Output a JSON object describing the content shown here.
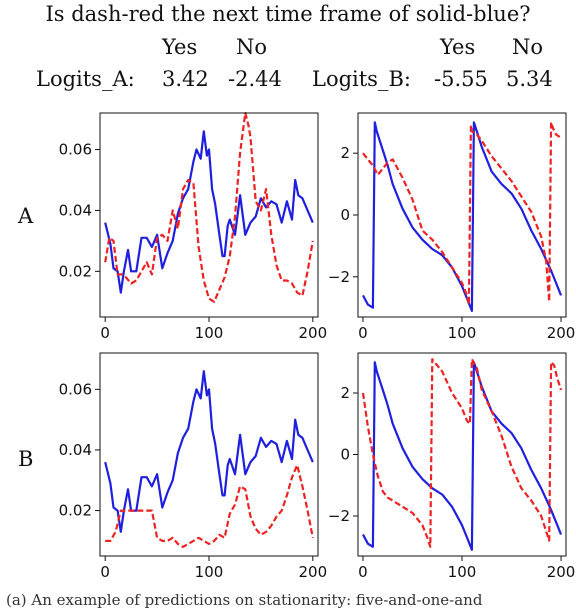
{
  "header": {
    "question": "Is dash-red the next time frame of solid-blue?",
    "yes_label": "Yes",
    "no_label": "No",
    "logits_a_label": "Logits_A:",
    "logits_a_yes": "3.42",
    "logits_a_no": "-2.44",
    "logits_b_label": "Logits_B:",
    "logits_b_yes": "-5.55",
    "logits_b_no": "5.34"
  },
  "row_labels": [
    "A",
    "B"
  ],
  "caption": "(a) An example of predictions on stationarity: five-and-one-and",
  "colors": {
    "solid": "#1f1fe0",
    "dash": "#ee2222"
  },
  "chart_data": [
    {
      "type": "line",
      "panel": "A-left",
      "xlim": [
        -5,
        205
      ],
      "ylim": [
        0.005,
        0.072
      ],
      "xticks": [
        "0",
        "100",
        "200"
      ],
      "yticks": [
        "0.02",
        "0.04",
        "0.06"
      ],
      "ytick_values": [
        0.02,
        0.04,
        0.06
      ],
      "series": [
        {
          "style": "solid",
          "x": [
            0,
            5,
            8,
            12,
            15,
            18,
            22,
            25,
            30,
            35,
            40,
            45,
            50,
            55,
            60,
            65,
            70,
            75,
            80,
            85,
            88,
            92,
            95,
            98,
            100,
            103,
            106,
            110,
            113,
            115,
            118,
            120,
            125,
            130,
            135,
            140,
            145,
            150,
            155,
            160,
            165,
            170,
            175,
            180,
            183,
            186,
            190,
            195,
            200
          ],
          "y": [
            0.036,
            0.029,
            0.021,
            0.02,
            0.013,
            0.02,
            0.027,
            0.02,
            0.02,
            0.031,
            0.031,
            0.028,
            0.032,
            0.021,
            0.026,
            0.03,
            0.039,
            0.044,
            0.047,
            0.056,
            0.06,
            0.057,
            0.066,
            0.058,
            0.06,
            0.047,
            0.042,
            0.032,
            0.025,
            0.025,
            0.035,
            0.037,
            0.032,
            0.045,
            0.032,
            0.036,
            0.038,
            0.044,
            0.041,
            0.043,
            0.042,
            0.036,
            0.043,
            0.037,
            0.05,
            0.045,
            0.044,
            0.04,
            0.036
          ]
        },
        {
          "style": "dash",
          "x": [
            0,
            4,
            8,
            12,
            16,
            20,
            25,
            30,
            35,
            40,
            45,
            50,
            55,
            60,
            65,
            70,
            75,
            80,
            85,
            90,
            95,
            100,
            105,
            110,
            115,
            120,
            125,
            130,
            135,
            138,
            140,
            145,
            150,
            155,
            160,
            165,
            170,
            175,
            180,
            185,
            190,
            195,
            200
          ],
          "y": [
            0.023,
            0.031,
            0.03,
            0.019,
            0.019,
            0.018,
            0.016,
            0.017,
            0.02,
            0.023,
            0.019,
            0.031,
            0.032,
            0.03,
            0.04,
            0.034,
            0.047,
            0.05,
            0.049,
            0.028,
            0.017,
            0.011,
            0.01,
            0.014,
            0.018,
            0.025,
            0.038,
            0.059,
            0.072,
            0.068,
            0.064,
            0.043,
            0.04,
            0.047,
            0.032,
            0.022,
            0.017,
            0.017,
            0.016,
            0.013,
            0.012,
            0.02,
            0.03
          ]
        }
      ]
    },
    {
      "type": "line",
      "panel": "A-right",
      "xlim": [
        -5,
        205
      ],
      "ylim": [
        -3.3,
        3.3
      ],
      "xticks": [
        "0",
        "100",
        "200"
      ],
      "yticks": [
        "2",
        "0",
        "−2"
      ],
      "ytick_values": [
        2,
        0,
        -2
      ],
      "series": [
        {
          "style": "solid",
          "x": [
            0,
            5,
            10,
            12,
            14,
            20,
            25,
            30,
            40,
            50,
            60,
            70,
            80,
            90,
            100,
            105,
            110,
            112,
            114,
            120,
            130,
            140,
            150,
            160,
            170,
            180,
            190,
            195,
            200
          ],
          "y": [
            -2.6,
            -2.9,
            -3.0,
            3.0,
            2.7,
            2.1,
            1.6,
            1.0,
            0.2,
            -0.4,
            -0.8,
            -1.1,
            -1.3,
            -1.7,
            -2.3,
            -2.7,
            -3.1,
            3.0,
            2.8,
            2.2,
            1.4,
            1.0,
            0.7,
            0.2,
            -0.5,
            -1.1,
            -1.8,
            -2.2,
            -2.6
          ]
        },
        {
          "style": "dash",
          "x": [
            0,
            5,
            10,
            15,
            20,
            25,
            30,
            40,
            50,
            60,
            70,
            80,
            90,
            100,
            105,
            107,
            109,
            110,
            115,
            120,
            130,
            140,
            150,
            160,
            170,
            180,
            185,
            188,
            190,
            192,
            195,
            200
          ],
          "y": [
            2.0,
            1.8,
            1.6,
            1.3,
            1.5,
            1.7,
            1.8,
            1.2,
            0.5,
            -0.5,
            -0.8,
            -1.2,
            -1.7,
            -2.2,
            -2.6,
            -2.9,
            2.9,
            2.7,
            2.6,
            2.4,
            1.9,
            1.5,
            1.1,
            0.6,
            0.1,
            -0.7,
            -1.5,
            -2.8,
            3.0,
            2.8,
            2.6,
            2.5
          ]
        }
      ]
    },
    {
      "type": "line",
      "panel": "B-left",
      "xlim": [
        -5,
        205
      ],
      "ylim": [
        0.005,
        0.072
      ],
      "xticks": [
        "0",
        "100",
        "200"
      ],
      "yticks": [
        "0.02",
        "0.04",
        "0.06"
      ],
      "ytick_values": [
        0.02,
        0.04,
        0.06
      ],
      "series": [
        {
          "style": "solid",
          "x": [
            0,
            5,
            8,
            12,
            15,
            18,
            22,
            25,
            30,
            35,
            40,
            45,
            50,
            55,
            60,
            65,
            70,
            75,
            80,
            85,
            88,
            92,
            95,
            98,
            100,
            103,
            106,
            110,
            113,
            115,
            118,
            120,
            125,
            130,
            135,
            140,
            145,
            150,
            155,
            160,
            165,
            170,
            175,
            180,
            183,
            186,
            190,
            195,
            200
          ],
          "y": [
            0.036,
            0.029,
            0.021,
            0.02,
            0.013,
            0.02,
            0.027,
            0.02,
            0.02,
            0.031,
            0.031,
            0.028,
            0.032,
            0.021,
            0.026,
            0.03,
            0.039,
            0.044,
            0.047,
            0.056,
            0.06,
            0.057,
            0.066,
            0.058,
            0.06,
            0.047,
            0.042,
            0.032,
            0.025,
            0.025,
            0.035,
            0.037,
            0.032,
            0.045,
            0.032,
            0.036,
            0.038,
            0.044,
            0.041,
            0.043,
            0.042,
            0.036,
            0.043,
            0.037,
            0.05,
            0.045,
            0.044,
            0.04,
            0.036
          ]
        },
        {
          "style": "dash",
          "x": [
            0,
            5,
            10,
            15,
            20,
            25,
            30,
            35,
            40,
            45,
            50,
            55,
            60,
            65,
            70,
            75,
            80,
            85,
            90,
            95,
            100,
            105,
            110,
            115,
            120,
            125,
            130,
            135,
            140,
            145,
            150,
            155,
            160,
            165,
            170,
            175,
            180,
            185,
            190,
            195,
            200
          ],
          "y": [
            0.01,
            0.01,
            0.013,
            0.02,
            0.02,
            0.02,
            0.02,
            0.02,
            0.02,
            0.02,
            0.011,
            0.01,
            0.01,
            0.011,
            0.009,
            0.008,
            0.009,
            0.01,
            0.011,
            0.01,
            0.009,
            0.01,
            0.012,
            0.011,
            0.019,
            0.022,
            0.028,
            0.027,
            0.018,
            0.014,
            0.012,
            0.013,
            0.015,
            0.018,
            0.02,
            0.025,
            0.031,
            0.035,
            0.028,
            0.02,
            0.011
          ]
        }
      ]
    },
    {
      "type": "line",
      "panel": "B-right",
      "xlim": [
        -5,
        205
      ],
      "ylim": [
        -3.3,
        3.3
      ],
      "xticks": [
        "0",
        "100",
        "200"
      ],
      "yticks": [
        "2",
        "0",
        "−2"
      ],
      "ytick_values": [
        2,
        0,
        -2
      ],
      "series": [
        {
          "style": "solid",
          "x": [
            0,
            5,
            10,
            12,
            14,
            20,
            25,
            30,
            40,
            50,
            60,
            70,
            80,
            90,
            100,
            105,
            110,
            112,
            114,
            120,
            130,
            140,
            150,
            160,
            170,
            180,
            190,
            195,
            200
          ],
          "y": [
            -2.6,
            -2.9,
            -3.0,
            3.0,
            2.7,
            2.1,
            1.6,
            1.0,
            0.2,
            -0.4,
            -0.8,
            -1.1,
            -1.3,
            -1.7,
            -2.3,
            -2.7,
            -3.1,
            3.0,
            2.8,
            2.2,
            1.4,
            1.0,
            0.7,
            0.2,
            -0.5,
            -1.1,
            -1.8,
            -2.2,
            -2.6
          ]
        },
        {
          "style": "dash",
          "x": [
            0,
            5,
            10,
            15,
            20,
            25,
            30,
            40,
            50,
            60,
            65,
            68,
            70,
            72,
            75,
            80,
            90,
            100,
            105,
            108,
            110,
            115,
            120,
            130,
            140,
            150,
            160,
            170,
            180,
            185,
            188,
            190,
            193,
            196,
            200
          ],
          "y": [
            2.0,
            0.9,
            0.0,
            -0.7,
            -1.2,
            -1.4,
            -1.5,
            -1.7,
            -1.9,
            -2.3,
            -2.7,
            -3.0,
            3.1,
            3.0,
            2.9,
            2.7,
            2.0,
            1.5,
            1.1,
            1.0,
            3.1,
            2.8,
            2.1,
            1.4,
            0.6,
            -0.4,
            -1.1,
            -1.5,
            -2.0,
            -2.5,
            -2.8,
            3.0,
            2.9,
            2.5,
            2.1
          ]
        }
      ]
    }
  ]
}
